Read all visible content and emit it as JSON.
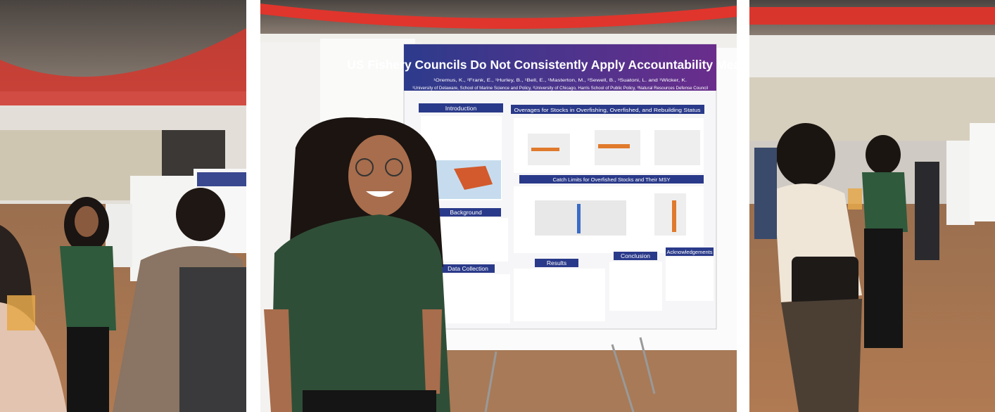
{
  "poster": {
    "title": "US Fishery Councils Do Not Consistently Apply Accountability Measures",
    "authors": "¹Oremus, K., ²Frank, E., ¹Hurley, B., ¹Bell, E., ¹Masterton, M., ²Sewell, B., ³Suatoni, L. and ¹Wicker, K.",
    "affiliations": "¹University of Delaware, School of Marine Science and Policy, ²University of Chicago, Harris School of Public Policy, ³Natural Resources Defense Council",
    "sections": [
      "Introduction",
      "Overages for Stocks in Overfishing, Overfished, and Rebuilding Status",
      "Catch Limits for Overfished Stocks and Their MSY",
      "Background",
      "Data Collection",
      "Results",
      "Conclusion",
      "Acknowledgements"
    ]
  }
}
